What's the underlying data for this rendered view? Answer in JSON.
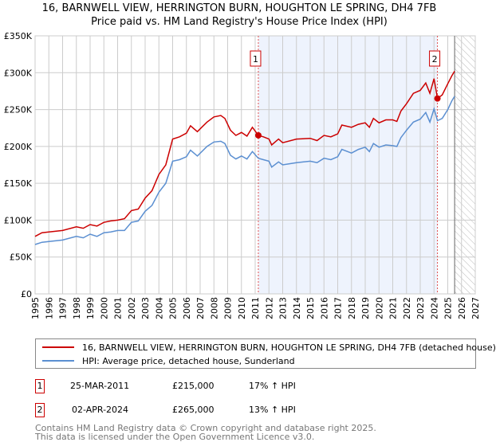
{
  "chart_data": {
    "type": "line",
    "title": "16, BARNWELL VIEW, HERRINGTON BURN, HOUGHTON LE SPRING, DH4 7FB",
    "subtitle": "Price paid vs. HM Land Registry's House Price Index (HPI)",
    "xlim": [
      1995,
      2027
    ],
    "ylim": [
      0,
      350000
    ],
    "x_ticks": [
      "1995",
      "1996",
      "1997",
      "1998",
      "1999",
      "2000",
      "2001",
      "2002",
      "2003",
      "2004",
      "2005",
      "2006",
      "2007",
      "2008",
      "2009",
      "2010",
      "2011",
      "2012",
      "2013",
      "2014",
      "2015",
      "2016",
      "2017",
      "2018",
      "2019",
      "2020",
      "2021",
      "2022",
      "2023",
      "2024",
      "2025",
      "2026",
      "2027"
    ],
    "y_ticks": [
      {
        "v": 0,
        "label": "£0"
      },
      {
        "v": 50000,
        "label": "£50K"
      },
      {
        "v": 100000,
        "label": "£100K"
      },
      {
        "v": 150000,
        "label": "£150K"
      },
      {
        "v": 200000,
        "label": "£200K"
      },
      {
        "v": 250000,
        "label": "£250K"
      },
      {
        "v": 300000,
        "label": "£300K"
      },
      {
        "v": 350000,
        "label": "£350K"
      }
    ],
    "grid": true,
    "shaded_range": [
      2011.23,
      2024.25
    ],
    "forecast_from": 2025.5,
    "series": [
      {
        "name": "16, BARNWELL VIEW, HERRINGTON BURN, HOUGHTON LE SPRING, DH4 7FB (detached house)",
        "color": "#cc0000",
        "x": [
          1995,
          1995.5,
          1996,
          1997,
          1998,
          1998.5,
          1999,
          1999.5,
          2000,
          2000.5,
          2001,
          2001.5,
          2002,
          2002.5,
          2003,
          2003.5,
          2004,
          2004.5,
          2005,
          2005.5,
          2006,
          2006.3,
          2006.8,
          2007.5,
          2008,
          2008.5,
          2008.8,
          2009.2,
          2009.6,
          2010,
          2010.4,
          2010.8,
          2011.23,
          2011.6,
          2012,
          2012.2,
          2012.7,
          2013,
          2014,
          2015,
          2015.5,
          2016,
          2016.5,
          2017,
          2017.3,
          2018,
          2018.5,
          2019,
          2019.3,
          2019.6,
          2020,
          2020.5,
          2021,
          2021.3,
          2021.6,
          2022,
          2022.5,
          2023,
          2023.4,
          2023.7,
          2024,
          2024.25,
          2024.6,
          2025,
          2025.3,
          2025.5
        ],
        "y": [
          78000,
          83000,
          84000,
          86000,
          91000,
          89000,
          94000,
          92000,
          97000,
          99000,
          100000,
          102000,
          113000,
          115000,
          130000,
          140000,
          162000,
          175000,
          210000,
          213000,
          218000,
          228000,
          220000,
          233000,
          240000,
          242000,
          238000,
          222000,
          215000,
          219000,
          214000,
          226000,
          215000,
          213000,
          210000,
          202000,
          210000,
          205000,
          210000,
          211000,
          208000,
          215000,
          213000,
          217000,
          229000,
          226000,
          230000,
          232000,
          226000,
          238000,
          232000,
          236000,
          236000,
          234000,
          248000,
          258000,
          272000,
          276000,
          286000,
          272000,
          292000,
          265000,
          270000,
          285000,
          296000,
          302000
        ]
      },
      {
        "name": "HPI: Average price, detached house, Sunderland",
        "color": "#5b8fd1",
        "x": [
          1995,
          1995.5,
          1996,
          1997,
          1998,
          1998.5,
          1999,
          1999.5,
          2000,
          2000.5,
          2001,
          2001.5,
          2002,
          2002.5,
          2003,
          2003.5,
          2004,
          2004.5,
          2005,
          2005.5,
          2006,
          2006.3,
          2006.8,
          2007.5,
          2008,
          2008.5,
          2008.8,
          2009.2,
          2009.6,
          2010,
          2010.4,
          2010.8,
          2011.23,
          2011.6,
          2012,
          2012.2,
          2012.7,
          2013,
          2014,
          2015,
          2015.5,
          2016,
          2016.5,
          2017,
          2017.3,
          2018,
          2018.5,
          2019,
          2019.3,
          2019.6,
          2020,
          2020.5,
          2021,
          2021.3,
          2021.6,
          2022,
          2022.5,
          2023,
          2023.4,
          2023.7,
          2024,
          2024.25,
          2024.6,
          2025,
          2025.3,
          2025.5
        ],
        "y": [
          67000,
          70000,
          71000,
          73000,
          78000,
          76000,
          81000,
          78000,
          83000,
          84000,
          86000,
          86000,
          97000,
          99000,
          112000,
          120000,
          138000,
          150000,
          180000,
          182000,
          186000,
          195000,
          187000,
          200000,
          206000,
          207000,
          204000,
          188000,
          183000,
          187000,
          183000,
          193000,
          184000,
          182000,
          180000,
          172000,
          179000,
          175000,
          178000,
          180000,
          178000,
          184000,
          182000,
          186000,
          196000,
          191000,
          196000,
          199000,
          193000,
          204000,
          199000,
          202000,
          201000,
          200000,
          212000,
          222000,
          233000,
          237000,
          246000,
          233000,
          251000,
          235000,
          238000,
          250000,
          262000,
          268000
        ]
      }
    ],
    "markers": [
      {
        "label": "1",
        "x": 2011.23,
        "y": 215000
      },
      {
        "label": "2",
        "x": 2024.25,
        "y": 265000
      }
    ]
  },
  "legend": {
    "property": "16, BARNWELL VIEW, HERRINGTON BURN, HOUGHTON LE SPRING, DH4 7FB (detached house)",
    "hpi": "HPI: Average price, detached house, Sunderland"
  },
  "transactions": [
    {
      "num": "1",
      "date": "25-MAR-2011",
      "price": "£215,000",
      "hpi": "17% ↑ HPI"
    },
    {
      "num": "2",
      "date": "02-APR-2024",
      "price": "£265,000",
      "hpi": "13% ↑ HPI"
    }
  ],
  "footer": {
    "line1": "Contains HM Land Registry data © Crown copyright and database right 2025.",
    "line2": "This data is licensed under the Open Government Licence v3.0."
  }
}
